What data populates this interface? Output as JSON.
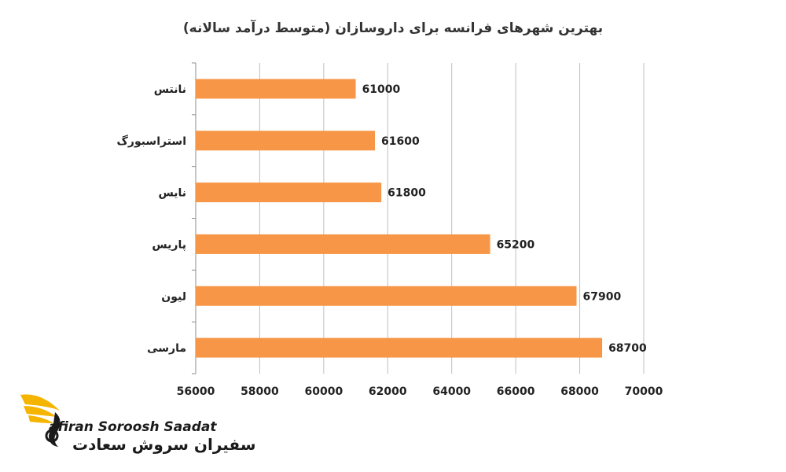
{
  "chart_data": {
    "type": "bar",
    "orientation": "horizontal",
    "title": "بهترین شهرهای فرانسه برای داروسازان (متوسط درآمد سالانه)",
    "categories": [
      "نانتس",
      "استراسبورگ",
      "نایس",
      "پاریس",
      "لیون",
      "مارسی"
    ],
    "values": [
      61000,
      61600,
      61800,
      65200,
      67900,
      68700
    ],
    "xlim": [
      56000,
      70000
    ],
    "x_ticks": [
      56000,
      58000,
      60000,
      62000,
      64000,
      66000,
      68000,
      70000
    ],
    "tick_labels": [
      "56000",
      "58000",
      "60000",
      "62000",
      "64000",
      "66000",
      "68000",
      "70000"
    ],
    "data_labels": [
      "61000",
      "61600",
      "61800",
      "65200",
      "67900",
      "68700"
    ],
    "grid": true,
    "bar_color": "#F79646",
    "grid_color": "#BFBFBF"
  },
  "logo": {
    "en_text": "afiran Soroosh Saadat",
    "fa_text": "سفیران سروش سعادت",
    "accent_color": "#F5B400"
  }
}
